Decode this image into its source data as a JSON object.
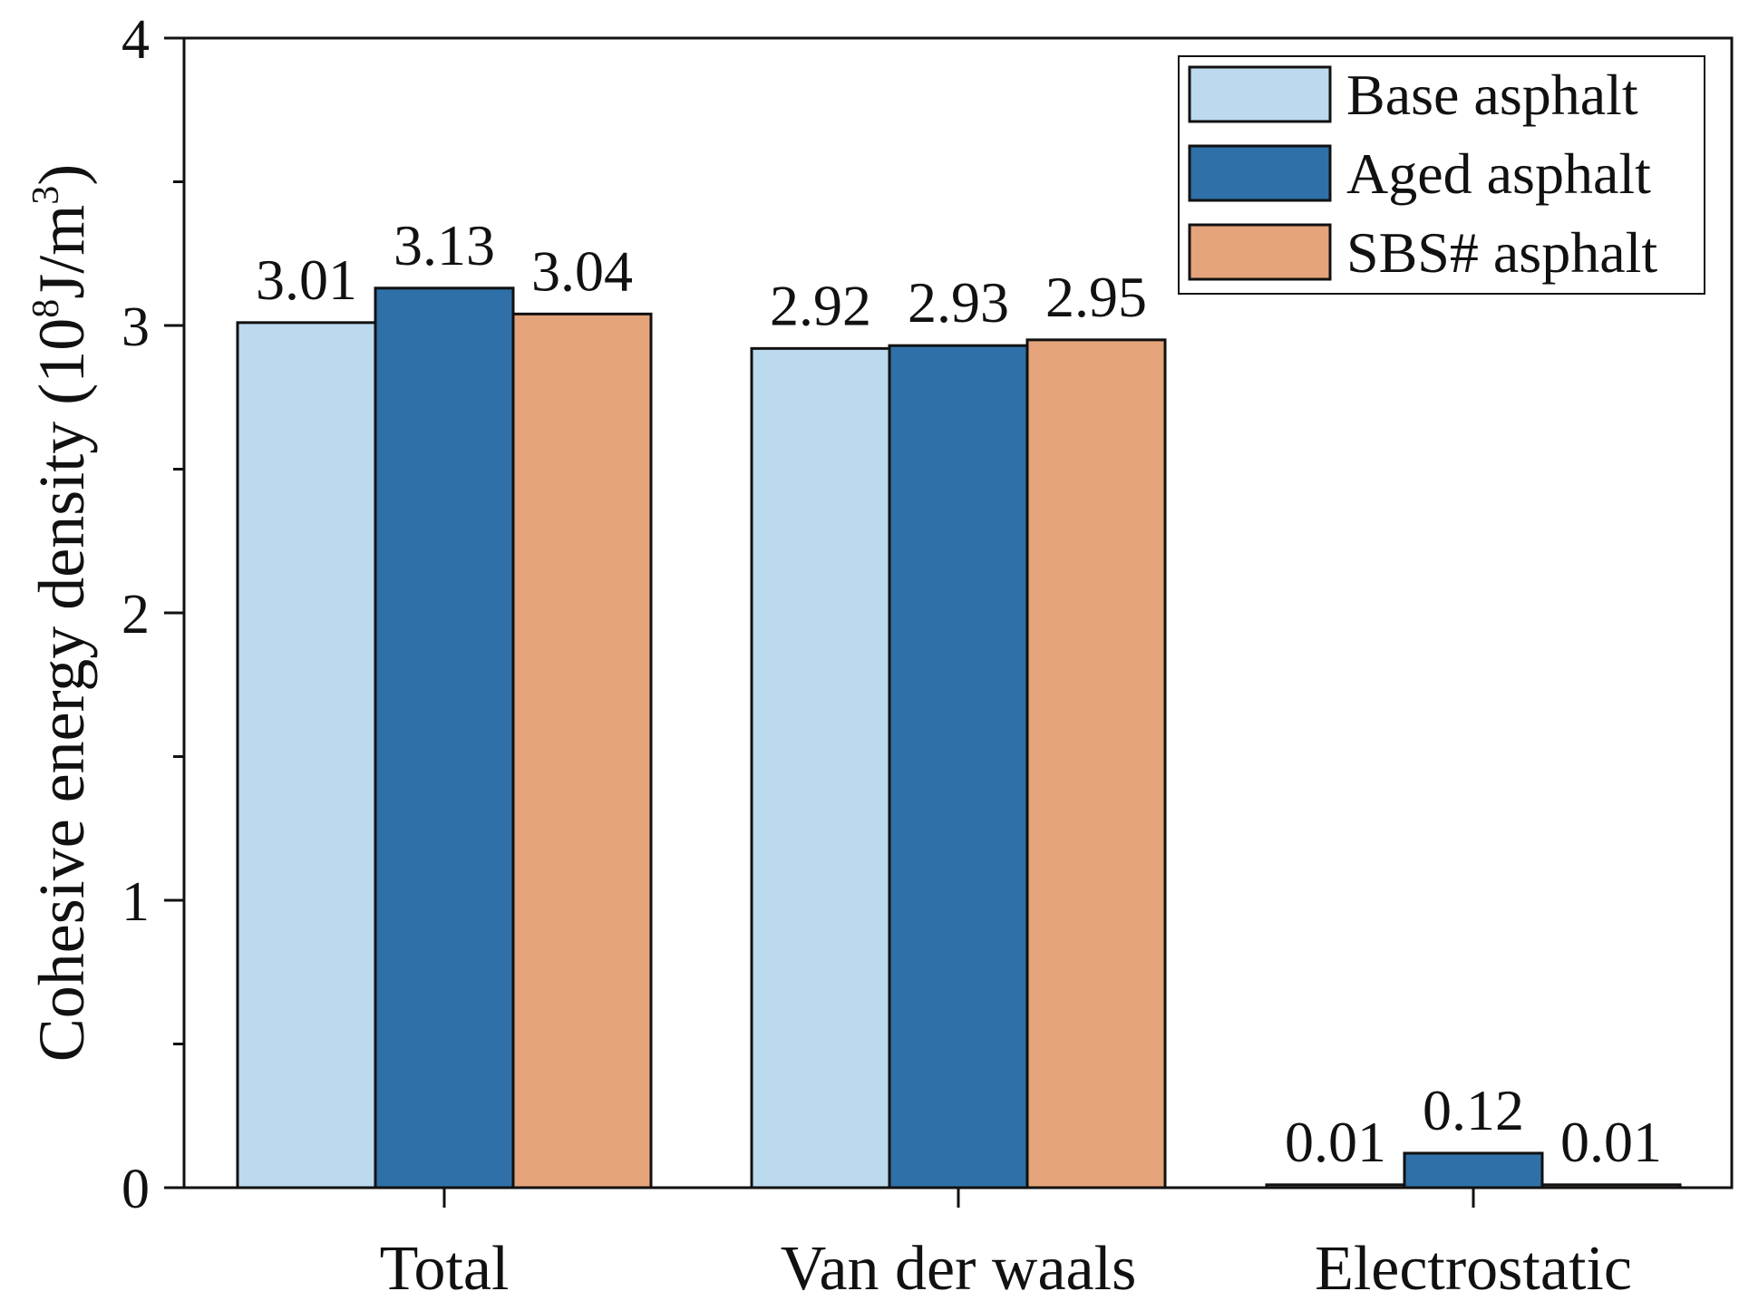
{
  "chart_data": {
    "type": "bar",
    "title": "",
    "categories": [
      "Total",
      "Van der waals",
      "Electrostatic"
    ],
    "series": [
      {
        "name": "Base asphalt",
        "color": "#BBDAEE",
        "values": [
          3.01,
          2.92,
          0.01
        ],
        "labels": [
          "3.01",
          "2.92",
          "0.01"
        ]
      },
      {
        "name": "Aged asphalt",
        "color": "#2F70A8",
        "values": [
          3.13,
          2.93,
          0.12
        ],
        "labels": [
          "3.13",
          "2.93",
          "0.12"
        ]
      },
      {
        "name": "SBS# asphalt",
        "color": "#E5A47C",
        "values": [
          3.04,
          2.95,
          0.01
        ],
        "labels": [
          "3.04",
          "2.95",
          "0.01"
        ]
      }
    ],
    "xlabel": "",
    "ylabel": {
      "prefix": "Cohesive energy density (10",
      "exp1": "8",
      "mid": "J/m",
      "exp2": "3",
      "suffix": ")"
    },
    "ylim": [
      0,
      4
    ],
    "yticks": [
      0,
      1,
      2,
      3,
      4
    ],
    "grid": false,
    "legend_position": "top-right"
  }
}
